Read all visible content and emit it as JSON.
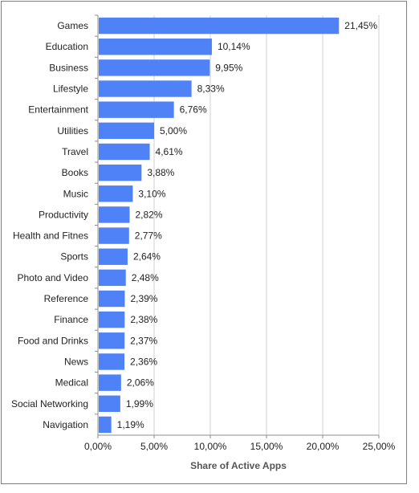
{
  "chart_data": {
    "type": "bar",
    "orientation": "horizontal",
    "categories": [
      "Games",
      "Education",
      "Business",
      "Lifestyle",
      "Entertainment",
      "Utilities",
      "Travel",
      "Books",
      "Music",
      "Productivity",
      "Health and Fitnes",
      "Sports",
      "Photo and Video",
      "Reference",
      "Finance",
      "Food and Drinks",
      "News",
      "Medical",
      "Social Networking",
      "Navigation"
    ],
    "values": [
      21.45,
      10.14,
      9.95,
      8.33,
      6.76,
      5.0,
      4.61,
      3.88,
      3.1,
      2.82,
      2.77,
      2.64,
      2.48,
      2.39,
      2.38,
      2.37,
      2.36,
      2.06,
      1.99,
      1.19
    ],
    "value_labels": [
      "21,45%",
      "10,14%",
      "9,95%",
      "8,33%",
      "6,76%",
      "5,00%",
      "4,61%",
      "3,88%",
      "3,10%",
      "2,82%",
      "2,77%",
      "2,64%",
      "2,48%",
      "2,39%",
      "2,38%",
      "2,37%",
      "2,36%",
      "2,06%",
      "1,99%",
      "1,19%"
    ],
    "x_ticks": [
      0,
      5,
      10,
      15,
      20,
      25
    ],
    "x_tick_labels": [
      "0,00%",
      "5,00%",
      "10,00%",
      "15,00%",
      "20,00%",
      "25,00%"
    ],
    "xlim": [
      0,
      25
    ],
    "xlabel": "Share of Active Apps",
    "ylabel": "",
    "title": "",
    "grid": "vertical",
    "legend": "none",
    "bar_color": "#4f81f7",
    "grid_color": "#d0d0d0"
  }
}
